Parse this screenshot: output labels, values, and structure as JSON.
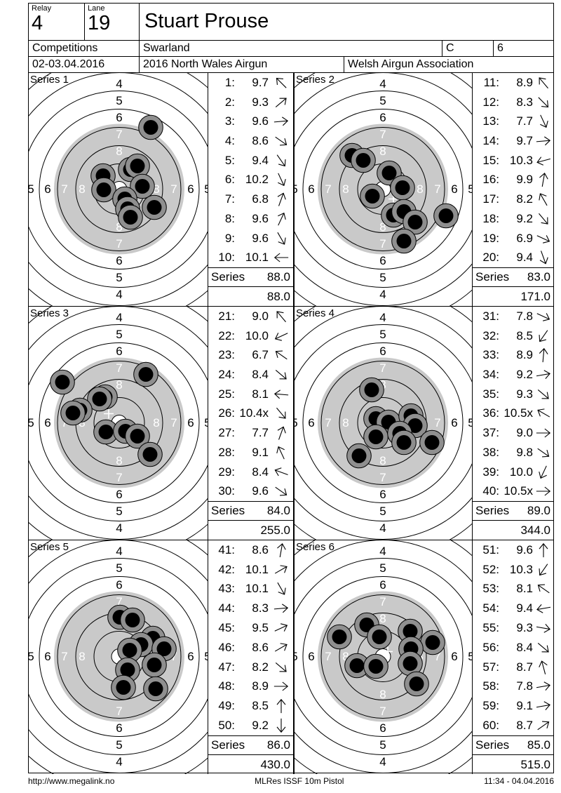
{
  "header": {
    "relay_label": "Relay",
    "relay_value": "4",
    "lane_label": "Lane",
    "lane_value": "19",
    "shooter_name": "Stuart Prouse",
    "club_label": "Competitions",
    "club_value": "Swarland",
    "class_value": "C",
    "group_value": "6",
    "date": "02-03.04.2016",
    "event": "2016 North Wales Airgun",
    "organisation": "Welsh Airgun Association"
  },
  "footer": {
    "left": "http://www.megalink.no",
    "center": "MLRes ISSF 10m Pistol",
    "right": "11:34 - 04.04.2016"
  },
  "target": {
    "colors": {
      "aiming_gray": "#c9c9c9",
      "hole_outer": "#8f8f8f",
      "hole_inner": "#000000",
      "ring_line": "#000000",
      "label_light": "#ffffff",
      "label_dark": "#000000",
      "mpi_cross": "#ffffff"
    },
    "white_center_radius": 11,
    "gray_radius": 93,
    "ring_radii": [
      36,
      62,
      88,
      114,
      140,
      166,
      192
    ],
    "hole_outer_radius": 17.3,
    "hole_inner_radius": 10.5,
    "v_labels": [
      {
        "t": "4",
        "d": 150,
        "c": "#000000"
      },
      {
        "t": "5",
        "d": 126,
        "c": "#000000"
      },
      {
        "t": "6",
        "d": 102,
        "c": "#000000"
      },
      {
        "t": "7",
        "d": 78,
        "c": "#ffffff"
      },
      {
        "t": "8",
        "d": 54,
        "c": "#ffffff"
      }
    ],
    "h_labels": [
      {
        "t": "5",
        "d": 126,
        "c": "#000000"
      },
      {
        "t": "6",
        "d": 102,
        "c": "#000000"
      },
      {
        "t": "7",
        "d": 78,
        "c": "#ffffff"
      },
      {
        "t": "8",
        "d": 53,
        "c": "#ffffff"
      }
    ]
  },
  "series": [
    {
      "label": "Series 1",
      "series_word": "Series",
      "series_total": "88.0",
      "cumulative": "88.0",
      "shots": [
        {
          "no": "1:",
          "val": "9.7",
          "deg": 135
        },
        {
          "no": "2:",
          "val": "9.3",
          "deg": 40
        },
        {
          "no": "3:",
          "val": "9.6",
          "deg": 5
        },
        {
          "no": "4:",
          "val": "8.6",
          "deg": -35
        },
        {
          "no": "5:",
          "val": "9.4",
          "deg": -55
        },
        {
          "no": "6:",
          "val": "10.2",
          "deg": -65
        },
        {
          "no": "7:",
          "val": "6.8",
          "deg": 70
        },
        {
          "no": "8:",
          "val": "9.6",
          "deg": 65
        },
        {
          "no": "9:",
          "val": "9.6",
          "deg": -60
        },
        {
          "no": "10:",
          "val": "10.1",
          "deg": 180
        }
      ],
      "holes": [
        [
          45,
          -88
        ],
        [
          -23,
          -19
        ],
        [
          16,
          -28
        ],
        [
          26,
          -33
        ],
        [
          -22,
          1
        ],
        [
          33,
          -4
        ],
        [
          8,
          14
        ],
        [
          12,
          28
        ],
        [
          16,
          40
        ],
        [
          50,
          26
        ]
      ],
      "cross": [
        20,
        -2
      ]
    },
    {
      "label": "Series 2",
      "series_word": "Series",
      "series_total": "83.0",
      "cumulative": "171.0",
      "shots": [
        {
          "no": "11:",
          "val": "8.9",
          "deg": 130
        },
        {
          "no": "12:",
          "val": "8.3",
          "deg": -45
        },
        {
          "no": "13:",
          "val": "7.7",
          "deg": -65
        },
        {
          "no": "14:",
          "val": "9.7",
          "deg": 5
        },
        {
          "no": "15:",
          "val": "10.3",
          "deg": 195
        },
        {
          "no": "16:",
          "val": "9.9",
          "deg": 80
        },
        {
          "no": "17:",
          "val": "8.2",
          "deg": 120
        },
        {
          "no": "18:",
          "val": "9.2",
          "deg": -50
        },
        {
          "no": "19:",
          "val": "6.9",
          "deg": -25
        },
        {
          "no": "20:",
          "val": "9.4",
          "deg": -70
        }
      ],
      "holes": [
        [
          -44,
          -48
        ],
        [
          -28,
          -41
        ],
        [
          9,
          -23
        ],
        [
          28,
          -2
        ],
        [
          -15,
          10
        ],
        [
          15,
          37
        ],
        [
          30,
          32
        ],
        [
          46,
          47
        ],
        [
          90,
          38
        ],
        [
          30,
          74
        ]
      ],
      "cross": [
        15,
        14
      ]
    },
    {
      "label": "Series 3",
      "series_word": "Series",
      "series_total": "84.0",
      "cumulative": "255.0",
      "shots": [
        {
          "no": "21:",
          "val": "9.0",
          "deg": 130
        },
        {
          "no": "22:",
          "val": "10.0",
          "deg": 205
        },
        {
          "no": "23:",
          "val": "6.7",
          "deg": 145
        },
        {
          "no": "24:",
          "val": "8.4",
          "deg": -40
        },
        {
          "no": "25:",
          "val": "8.1",
          "deg": 175
        },
        {
          "no": "26:",
          "val": "10.4x",
          "deg": -50
        },
        {
          "no": "27:",
          "val": "7.7",
          "deg": 70
        },
        {
          "no": "28:",
          "val": "9.1",
          "deg": 115
        },
        {
          "no": "29:",
          "val": "8.4",
          "deg": 160
        },
        {
          "no": "30:",
          "val": "9.6",
          "deg": -35
        }
      ],
      "holes": [
        [
          -81,
          -58
        ],
        [
          38,
          -69
        ],
        [
          -20,
          -37
        ],
        [
          -28,
          -34
        ],
        [
          -56,
          -18
        ],
        [
          -66,
          -14
        ],
        [
          -19,
          13
        ],
        [
          9,
          12
        ],
        [
          26,
          19
        ],
        [
          44,
          45
        ]
      ],
      "cross": [
        -15,
        -13
      ]
    },
    {
      "label": "Series 4",
      "series_word": "Series",
      "series_total": "89.0",
      "cumulative": "344.0",
      "shots": [
        {
          "no": "31:",
          "val": "7.8",
          "deg": -25
        },
        {
          "no": "32:",
          "val": "8.5",
          "deg": 235
        },
        {
          "no": "33:",
          "val": "8.9",
          "deg": 85
        },
        {
          "no": "34:",
          "val": "9.2",
          "deg": 10
        },
        {
          "no": "35:",
          "val": "9.3",
          "deg": -40
        },
        {
          "no": "36:",
          "val": "10.5x",
          "deg": 150
        },
        {
          "no": "37:",
          "val": "9.0",
          "deg": 0
        },
        {
          "no": "38:",
          "val": "9.8",
          "deg": -35
        },
        {
          "no": "39:",
          "val": "10.0",
          "deg": 245
        },
        {
          "no": "40:",
          "val": "10.5x",
          "deg": 0
        }
      ],
      "holes": [
        [
          -16,
          -47
        ],
        [
          -10,
          -6
        ],
        [
          8,
          -1
        ],
        [
          40,
          -10
        ],
        [
          46,
          4
        ],
        [
          -10,
          20
        ],
        [
          24,
          15
        ],
        [
          30,
          28
        ],
        [
          70,
          28
        ],
        [
          -34,
          47
        ]
      ],
      "cross": [
        14,
        6
      ]
    },
    {
      "label": "Series 5",
      "series_word": "Series",
      "series_total": "86.0",
      "cumulative": "430.0",
      "shots": [
        {
          "no": "41:",
          "val": "8.6",
          "deg": 80
        },
        {
          "no": "42:",
          "val": "10.1",
          "deg": 30
        },
        {
          "no": "43:",
          "val": "10.1",
          "deg": -60
        },
        {
          "no": "44:",
          "val": "8.3",
          "deg": 5
        },
        {
          "no": "45:",
          "val": "9.5",
          "deg": 25
        },
        {
          "no": "46:",
          "val": "8.6",
          "deg": 30
        },
        {
          "no": "47:",
          "val": "8.2",
          "deg": -40
        },
        {
          "no": "48:",
          "val": "8.9",
          "deg": 0
        },
        {
          "no": "49:",
          "val": "8.5",
          "deg": 90
        },
        {
          "no": "50:",
          "val": "9.2",
          "deg": -90
        }
      ],
      "holes": [
        [
          1,
          -56
        ],
        [
          19,
          -52
        ],
        [
          48,
          -26
        ],
        [
          31,
          -17
        ],
        [
          15,
          -9
        ],
        [
          64,
          -11
        ],
        [
          50,
          12
        ],
        [
          12,
          19
        ],
        [
          6,
          44
        ],
        [
          52,
          46
        ]
      ],
      "cross": [
        28,
        -2
      ]
    },
    {
      "label": "Series 6",
      "series_word": "Series",
      "series_total": "85.0",
      "cumulative": "515.0",
      "shots": [
        {
          "no": "51:",
          "val": "9.6",
          "deg": 90
        },
        {
          "no": "52:",
          "val": "10.3",
          "deg": 235
        },
        {
          "no": "53:",
          "val": "8.1",
          "deg": 145
        },
        {
          "no": "54:",
          "val": "9.4",
          "deg": 190
        },
        {
          "no": "55:",
          "val": "9.3",
          "deg": -10
        },
        {
          "no": "56:",
          "val": "8.4",
          "deg": -40
        },
        {
          "no": "57:",
          "val": "8.7",
          "deg": 105
        },
        {
          "no": "58:",
          "val": "7.8",
          "deg": 10
        },
        {
          "no": "59:",
          "val": "9.1",
          "deg": 10
        },
        {
          "no": "60:",
          "val": "8.7",
          "deg": 35
        }
      ],
      "holes": [
        [
          -62,
          -28
        ],
        [
          -23,
          -45
        ],
        [
          -5,
          -28
        ],
        [
          39,
          -36
        ],
        [
          71,
          -20
        ],
        [
          40,
          -11
        ],
        [
          -37,
          13
        ],
        [
          -10,
          14
        ],
        [
          39,
          10
        ],
        [
          48,
          39
        ]
      ],
      "cross": [
        7,
        -7
      ]
    }
  ]
}
